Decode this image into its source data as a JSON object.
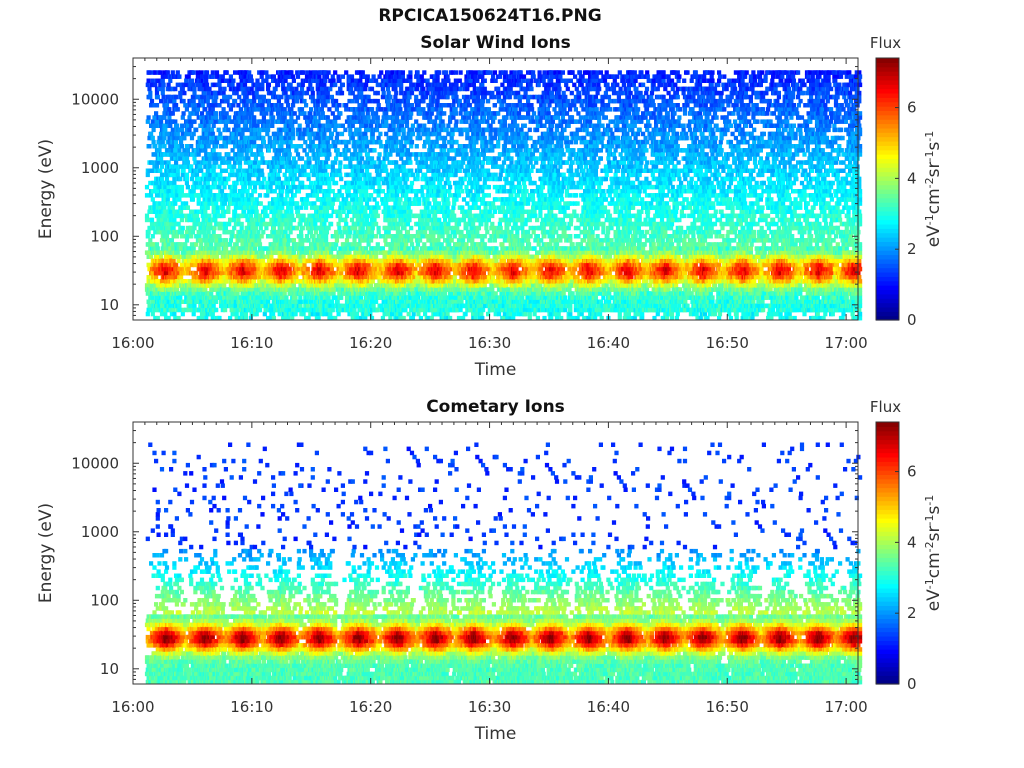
{
  "page": {
    "title": "RPCICA150624T16.PNG"
  },
  "chart_data": [
    {
      "type": "heatmap",
      "title": "Solar Wind Ions",
      "xlabel": "Time",
      "ylabel": "Energy (eV)",
      "x_ticks": [
        "16:00",
        "16:10",
        "16:20",
        "16:30",
        "16:40",
        "16:50",
        "17:00"
      ],
      "xlim": [
        "16:00",
        "17:01"
      ],
      "y_scale": "log",
      "y_ticks": [
        "10",
        "100",
        "1000",
        "10000"
      ],
      "ylim": [
        6,
        40000
      ],
      "colorbar": {
        "title": "Flux",
        "label": "eV-1cm-2sr-1s-1",
        "ticks": [
          "0",
          "2",
          "4",
          "6"
        ],
        "range": [
          0,
          7.4
        ],
        "colormap": "jet"
      },
      "sweep_minutes": [
        2.7,
        6.0,
        9.2,
        12.4,
        15.6,
        18.9,
        22.2,
        25.4,
        28.6,
        31.9,
        35.1,
        38.3,
        41.5,
        44.7,
        47.9,
        51.2,
        54.4,
        57.6,
        60.6
      ],
      "description_values": {
        "low_energy_band_eV": [
          10,
          70
        ],
        "low_energy_flux": [
          2.5,
          6.5
        ],
        "high_energy_band_eV": [
          100,
          20000
        ],
        "high_energy_flux": [
          1.0,
          2.8
        ]
      }
    },
    {
      "type": "heatmap",
      "title": "Cometary Ions",
      "xlabel": "Time",
      "ylabel": "Energy (eV)",
      "x_ticks": [
        "16:00",
        "16:10",
        "16:20",
        "16:30",
        "16:40",
        "16:50",
        "17:00"
      ],
      "xlim": [
        "16:00",
        "17:01"
      ],
      "y_scale": "log",
      "y_ticks": [
        "10",
        "100",
        "1000",
        "10000"
      ],
      "ylim": [
        6,
        40000
      ],
      "colorbar": {
        "title": "Flux",
        "label": "eV-1cm-2sr-1s-1",
        "ticks": [
          "0",
          "2",
          "4",
          "6"
        ],
        "range": [
          0,
          7.4
        ],
        "colormap": "jet"
      },
      "sweep_minutes": [
        2.7,
        6.0,
        9.2,
        12.4,
        15.6,
        18.9,
        22.2,
        25.4,
        28.6,
        31.9,
        35.1,
        38.3,
        41.5,
        44.7,
        47.9,
        51.2,
        54.4,
        57.6,
        60.6
      ],
      "description_values": {
        "peak_energy_eV": [
          15,
          45
        ],
        "peak_flux": [
          5.5,
          7.2
        ],
        "tail_energy_eV": [
          50,
          1000
        ],
        "tail_flux": [
          1.5,
          4.0
        ]
      }
    }
  ]
}
